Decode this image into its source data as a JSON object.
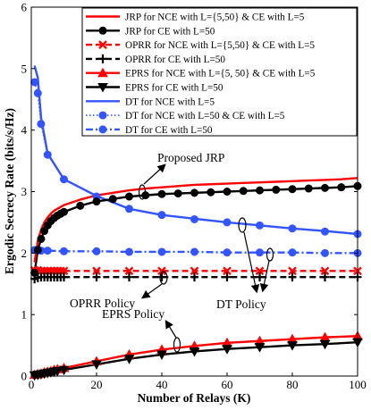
{
  "chart_data": {
    "type": "line",
    "xlabel": "Number of Relays (K)",
    "ylabel": "Ergodic Secrecy Rate (bits/s/Hz)",
    "xlim": [
      0,
      100
    ],
    "ylim": [
      0,
      6
    ],
    "xticks": [
      "0",
      "20",
      "40",
      "60",
      "80",
      "100"
    ],
    "yticks": [
      "0",
      "1",
      "2",
      "3",
      "4",
      "5",
      "6"
    ],
    "grid": false,
    "legend_position": "top-right",
    "series": [
      {
        "name": "JRP for NCE with L={5,50} & CE with L=5",
        "color": "#ff0000",
        "style": "solid",
        "marker": "none",
        "x": [
          1,
          2,
          3,
          4,
          5,
          6,
          7,
          8,
          9,
          10,
          15,
          20,
          25,
          30,
          35,
          40,
          45,
          50,
          55,
          60,
          65,
          70,
          75,
          80,
          85,
          90,
          95,
          100
        ],
        "y": [
          1.85,
          2.2,
          2.38,
          2.5,
          2.58,
          2.64,
          2.69,
          2.72,
          2.75,
          2.78,
          2.87,
          2.94,
          2.98,
          3.02,
          3.05,
          3.07,
          3.09,
          3.11,
          3.12,
          3.13,
          3.14,
          3.15,
          3.16,
          3.17,
          3.18,
          3.19,
          3.2,
          3.22
        ]
      },
      {
        "name": "JRP for CE with L=50",
        "color": "#000000",
        "style": "solid",
        "marker": "circle",
        "x": [
          1,
          2,
          3,
          4,
          5,
          6,
          7,
          8,
          9,
          10,
          15,
          20,
          25,
          30,
          35,
          40,
          45,
          50,
          55,
          60,
          65,
          70,
          75,
          80,
          85,
          90,
          95,
          100
        ],
        "y": [
          1.68,
          2.05,
          2.23,
          2.36,
          2.45,
          2.52,
          2.57,
          2.61,
          2.64,
          2.67,
          2.77,
          2.84,
          2.88,
          2.92,
          2.94,
          2.96,
          2.97,
          2.98,
          2.99,
          3.0,
          3.01,
          3.02,
          3.03,
          3.04,
          3.05,
          3.06,
          3.07,
          3.09
        ]
      },
      {
        "name": "OPRR for NCE with L={5,50} & CE with L=5",
        "color": "#ff0000",
        "style": "dashed",
        "marker": "x",
        "x": [
          1,
          2,
          3,
          4,
          5,
          6,
          7,
          8,
          9,
          10,
          20,
          30,
          40,
          50,
          60,
          70,
          80,
          90,
          100
        ],
        "y": [
          1.72,
          1.72,
          1.71,
          1.71,
          1.71,
          1.71,
          1.71,
          1.71,
          1.71,
          1.71,
          1.71,
          1.71,
          1.71,
          1.71,
          1.71,
          1.71,
          1.71,
          1.71,
          1.71
        ]
      },
      {
        "name": "OPRR for CE with L=50",
        "color": "#000000",
        "style": "dashed",
        "marker": "plus",
        "x": [
          1,
          2,
          3,
          4,
          5,
          6,
          7,
          8,
          9,
          10,
          20,
          30,
          40,
          50,
          60,
          70,
          80,
          90,
          100
        ],
        "y": [
          1.58,
          1.6,
          1.61,
          1.61,
          1.61,
          1.61,
          1.61,
          1.61,
          1.61,
          1.61,
          1.61,
          1.61,
          1.61,
          1.61,
          1.61,
          1.61,
          1.61,
          1.61,
          1.61
        ]
      },
      {
        "name": "EPRS for NCE with L={5, 50} & CE with L=5",
        "color": "#ff0000",
        "style": "solid",
        "marker": "triangle-up",
        "x": [
          1,
          2,
          3,
          4,
          5,
          6,
          7,
          8,
          10,
          20,
          30,
          40,
          50,
          60,
          70,
          80,
          90,
          100
        ],
        "y": [
          0.02,
          0.03,
          0.04,
          0.06,
          0.07,
          0.08,
          0.1,
          0.11,
          0.13,
          0.24,
          0.35,
          0.43,
          0.49,
          0.54,
          0.57,
          0.6,
          0.63,
          0.65
        ]
      },
      {
        "name": "EPRS for CE with L=50",
        "color": "#000000",
        "style": "solid",
        "marker": "triangle-down",
        "x": [
          1,
          2,
          3,
          4,
          5,
          6,
          7,
          8,
          10,
          20,
          30,
          40,
          50,
          60,
          70,
          80,
          90,
          100
        ],
        "y": [
          0.01,
          0.02,
          0.03,
          0.04,
          0.05,
          0.06,
          0.07,
          0.08,
          0.1,
          0.19,
          0.28,
          0.35,
          0.4,
          0.44,
          0.47,
          0.5,
          0.52,
          0.55
        ]
      },
      {
        "name": "DT for NCE with L=5",
        "color": "#3355ff",
        "style": "solid",
        "marker": "none",
        "x": [
          1,
          2,
          3,
          5,
          10,
          20,
          30,
          40,
          50,
          60,
          70,
          80,
          90,
          100
        ],
        "y": [
          5.05,
          4.85,
          4.2,
          3.62,
          3.2,
          2.93,
          2.72,
          2.62,
          2.56,
          2.5,
          2.45,
          2.4,
          2.36,
          2.31
        ]
      },
      {
        "name": "DT for NCE with L=50 & CE with L=5",
        "color": "#3355ff",
        "style": "dotted",
        "marker": "circle",
        "x": [
          1,
          2,
          3,
          5,
          10,
          20,
          30,
          40,
          50,
          60,
          70,
          80,
          90,
          100
        ],
        "y": [
          4.78,
          4.6,
          4.1,
          3.6,
          3.2,
          2.92,
          2.72,
          2.62,
          2.55,
          2.5,
          2.45,
          2.4,
          2.35,
          2.31
        ]
      },
      {
        "name": "DT for CE with L=50",
        "color": "#3355ff",
        "style": "dashdot",
        "marker": "circle",
        "x": [
          1,
          2,
          3,
          5,
          10,
          20,
          30,
          40,
          50,
          60,
          70,
          80,
          90,
          100
        ],
        "y": [
          2.05,
          2.05,
          2.04,
          2.04,
          2.03,
          2.03,
          2.02,
          2.02,
          2.02,
          2.01,
          2.01,
          2.01,
          2.0,
          2.0
        ]
      }
    ],
    "annotations": [
      {
        "text": "Proposed JRP"
      },
      {
        "text": "OPRR Policy"
      },
      {
        "text": "EPRS Policy"
      },
      {
        "text": "DT Policy"
      }
    ]
  }
}
